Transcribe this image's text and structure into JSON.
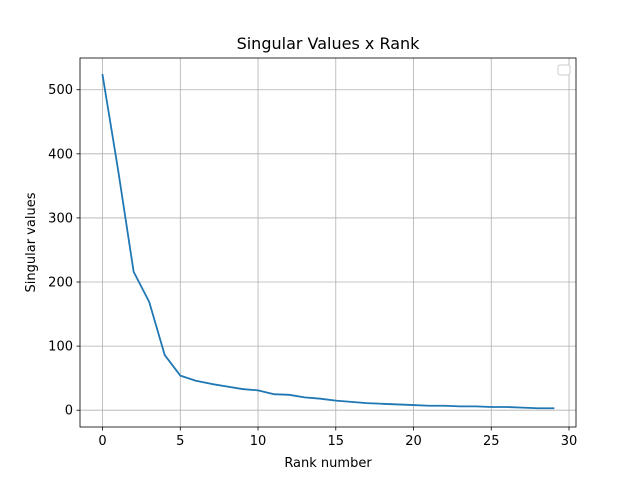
{
  "chart_data": {
    "type": "line",
    "title": "Singular Values x Rank",
    "xlabel": "Rank number",
    "ylabel": "Singular values",
    "xlim": [
      -1.45,
      30.45
    ],
    "ylim": [
      -26.2,
      549.5
    ],
    "xticks": [
      0,
      5,
      10,
      15,
      20,
      25,
      30
    ],
    "yticks": [
      0,
      100,
      200,
      300,
      400,
      500
    ],
    "grid": true,
    "legend": "top-right",
    "legend_entries": [],
    "series": [
      {
        "color": "#1f77b4",
        "x": [
          0,
          1,
          2,
          3,
          4,
          5,
          6,
          7,
          8,
          9,
          10,
          11,
          12,
          13,
          14,
          15,
          16,
          17,
          18,
          19,
          20,
          21,
          22,
          23,
          24,
          25,
          26,
          27,
          28,
          29
        ],
        "y": [
          523,
          375,
          216,
          169,
          86,
          54,
          46,
          41,
          37,
          33,
          31,
          25,
          24,
          20,
          18,
          15,
          13,
          11,
          10,
          9,
          8,
          7,
          7,
          6,
          6,
          5,
          5,
          4,
          3,
          3
        ]
      }
    ]
  }
}
